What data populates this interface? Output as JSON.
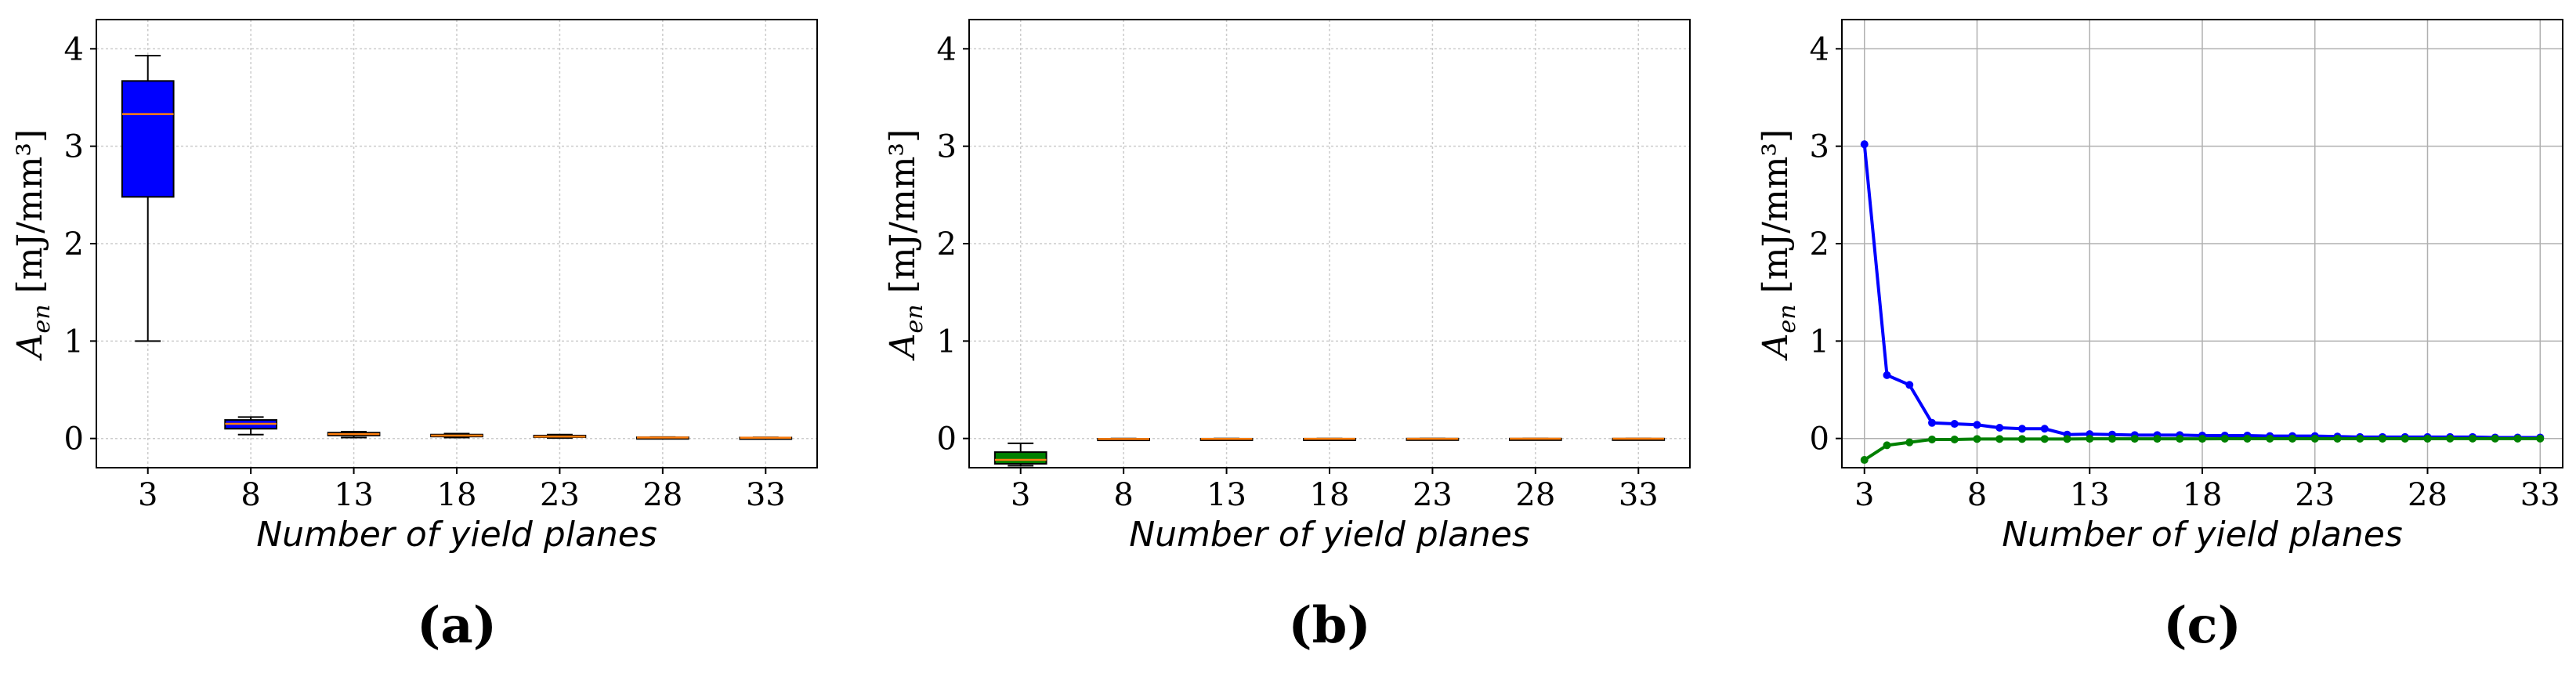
{
  "chart_data": [
    {
      "type": "box",
      "panel_label": "(a)",
      "xlabel": "Number of yield planes",
      "ylabel_main": "A",
      "ylabel_sub": "en",
      "ylabel_unit": "[mJ/mm³]",
      "xticks": [
        "3",
        "8",
        "13",
        "18",
        "23",
        "28",
        "33"
      ],
      "yticks": [
        "0",
        "1",
        "2",
        "3",
        "4"
      ],
      "ylim": [
        -0.3,
        4.3
      ],
      "grid": true,
      "box_color": "#0000ff",
      "median_color": "#ff7f0e",
      "boxes": [
        {
          "x": "3",
          "whislo": 1.0,
          "q1": 2.48,
          "median": 3.33,
          "q3": 3.67,
          "whishi": 3.93
        },
        {
          "x": "8",
          "whislo": 0.04,
          "q1": 0.1,
          "median": 0.15,
          "q3": 0.19,
          "whishi": 0.22
        },
        {
          "x": "13",
          "whislo": 0.01,
          "q1": 0.03,
          "median": 0.045,
          "q3": 0.06,
          "whishi": 0.07
        },
        {
          "x": "18",
          "whislo": 0.01,
          "q1": 0.02,
          "median": 0.03,
          "q3": 0.04,
          "whishi": 0.05
        },
        {
          "x": "23",
          "whislo": 0.005,
          "q1": 0.015,
          "median": 0.02,
          "q3": 0.03,
          "whishi": 0.04
        },
        {
          "x": "28",
          "whislo": 0.0,
          "q1": 0.005,
          "median": 0.01,
          "q3": 0.012,
          "whishi": 0.015
        },
        {
          "x": "33",
          "whislo": 0.0,
          "q1": 0.005,
          "median": 0.008,
          "q3": 0.01,
          "whishi": 0.012
        }
      ]
    },
    {
      "type": "box",
      "panel_label": "(b)",
      "xlabel": "Number of yield planes",
      "ylabel_main": "A",
      "ylabel_sub": "en",
      "ylabel_unit": "[mJ/mm³]",
      "xticks": [
        "3",
        "8",
        "13",
        "18",
        "23",
        "28",
        "33"
      ],
      "yticks": [
        "0",
        "1",
        "2",
        "3",
        "4"
      ],
      "ylim": [
        -0.3,
        4.3
      ],
      "grid": true,
      "box_color": "#008000",
      "median_color": "#ff7f0e",
      "boxes": [
        {
          "x": "3",
          "whislo": -0.28,
          "q1": -0.26,
          "median": -0.22,
          "q3": -0.14,
          "whishi": -0.05
        },
        {
          "x": "8",
          "whislo": -0.01,
          "q1": -0.008,
          "median": -0.005,
          "q3": -0.003,
          "whishi": 0.0
        },
        {
          "x": "13",
          "whislo": -0.01,
          "q1": -0.006,
          "median": -0.004,
          "q3": -0.002,
          "whishi": 0.0
        },
        {
          "x": "18",
          "whislo": -0.01,
          "q1": -0.006,
          "median": -0.003,
          "q3": -0.002,
          "whishi": 0.0
        },
        {
          "x": "23",
          "whislo": -0.01,
          "q1": -0.005,
          "median": -0.003,
          "q3": -0.001,
          "whishi": 0.0
        },
        {
          "x": "28",
          "whislo": -0.01,
          "q1": -0.005,
          "median": -0.002,
          "q3": -0.001,
          "whishi": 0.0
        },
        {
          "x": "33",
          "whislo": -0.01,
          "q1": -0.005,
          "median": -0.002,
          "q3": -0.001,
          "whishi": 0.0
        }
      ]
    },
    {
      "type": "line",
      "panel_label": "(c)",
      "xlabel": "Number of yield planes",
      "ylabel_main": "A",
      "ylabel_sub": "en",
      "ylabel_unit": "[mJ/mm³]",
      "xticks": [
        "3",
        "8",
        "13",
        "18",
        "23",
        "28",
        "33"
      ],
      "yticks": [
        "0",
        "1",
        "2",
        "3",
        "4"
      ],
      "xlim": [
        2,
        34
      ],
      "ylim": [
        -0.3,
        4.3
      ],
      "grid": true,
      "x": [
        3,
        4,
        5,
        6,
        7,
        8,
        9,
        10,
        11,
        12,
        13,
        14,
        15,
        16,
        17,
        18,
        19,
        20,
        21,
        22,
        23,
        24,
        25,
        26,
        27,
        28,
        29,
        30,
        31,
        32,
        33
      ],
      "series": [
        {
          "color": "#0000ff",
          "values": [
            3.02,
            0.65,
            0.55,
            0.16,
            0.15,
            0.14,
            0.11,
            0.1,
            0.1,
            0.04,
            0.045,
            0.04,
            0.035,
            0.035,
            0.035,
            0.03,
            0.03,
            0.03,
            0.025,
            0.025,
            0.025,
            0.02,
            0.015,
            0.015,
            0.015,
            0.015,
            0.015,
            0.015,
            0.01,
            0.01,
            0.01
          ]
        },
        {
          "color": "#008000",
          "values": [
            -0.22,
            -0.07,
            -0.04,
            -0.01,
            -0.01,
            -0.005,
            -0.005,
            -0.005,
            -0.005,
            -0.005,
            -0.003,
            -0.003,
            -0.003,
            -0.003,
            -0.003,
            -0.003,
            -0.002,
            -0.002,
            -0.002,
            -0.002,
            -0.002,
            -0.002,
            -0.002,
            -0.002,
            -0.002,
            -0.002,
            -0.001,
            -0.001,
            -0.001,
            -0.001,
            -0.001
          ]
        }
      ]
    }
  ]
}
